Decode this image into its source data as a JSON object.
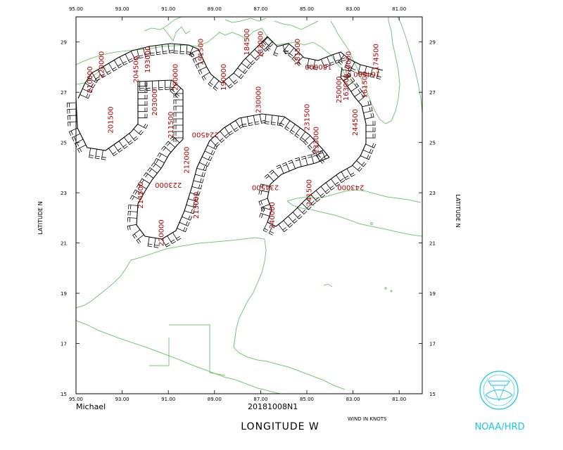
{
  "map": {
    "lon_range": [
      -95.0,
      -80.0
    ],
    "lat_range": [
      15.0,
      30.0
    ],
    "lon_ticks": [
      "95.00",
      "93.00",
      "91.00",
      "89.00",
      "87.00",
      "85.00",
      "83.00",
      "81.00"
    ],
    "lat_ticks": [
      "15",
      "17",
      "19",
      "21",
      "23",
      "25",
      "27",
      "29"
    ],
    "x_axis_label": "LONGITUDE   W",
    "y_axis_label_left": "LATITUDE   N",
    "y_axis_label_right": "LATITUDE   N",
    "storm_name": "Michael",
    "flight_id": "20181008N1",
    "units_note": "WIND IN KNOTS",
    "agency": "NOAA/HRD",
    "colors": {
      "coast": "#79c679",
      "track": "#000000",
      "labels": "#b00000",
      "logo": "#19c8e6"
    }
  },
  "track_labels": [
    {
      "text": "193000",
      "lon": -91.8,
      "lat": 28.3,
      "rot": -90
    },
    {
      "text": "191500",
      "lon": -89.5,
      "lat": 28.6,
      "rot": -90
    },
    {
      "text": "184500",
      "lon": -87.5,
      "lat": 29.0,
      "rot": -90
    },
    {
      "text": "183000",
      "lon": -86.9,
      "lat": 28.9,
      "rot": -90
    },
    {
      "text": "181500",
      "lon": -85.3,
      "lat": 28.6,
      "rot": -90
    },
    {
      "text": "174500",
      "lon": -81.9,
      "lat": 28.4,
      "rot": -90
    },
    {
      "text": "204500",
      "lon": -92.3,
      "lat": 27.9,
      "rot": -90
    },
    {
      "text": "200000",
      "lon": -90.6,
      "lat": 27.6,
      "rot": -90
    },
    {
      "text": "190000",
      "lon": -88.5,
      "lat": 27.6,
      "rot": -90
    },
    {
      "text": "180000",
      "lon": -84.5,
      "lat": 28.1,
      "rot": 180
    },
    {
      "text": "170000",
      "lon": -83.1,
      "lat": 28.1,
      "rot": -90
    },
    {
      "text": "164500",
      "lon": -82.4,
      "lat": 27.8,
      "rot": 180
    },
    {
      "text": "161500",
      "lon": -82.4,
      "lat": 27.3,
      "rot": -90
    },
    {
      "text": "163000",
      "lon": -83.2,
      "lat": 27.2,
      "rot": -90
    },
    {
      "text": "210000",
      "lon": -94.3,
      "lat": 27.5,
      "rot": -90
    },
    {
      "text": "220000",
      "lon": -93.8,
      "lat": 28.1,
      "rot": -90
    },
    {
      "text": "203000",
      "lon": -91.5,
      "lat": 26.6,
      "rot": -90
    },
    {
      "text": "211500",
      "lon": -90.8,
      "lat": 25.7,
      "rot": -90
    },
    {
      "text": "230000",
      "lon": -87.0,
      "lat": 26.7,
      "rot": -90
    },
    {
      "text": "231500",
      "lon": -84.9,
      "lat": 26.0,
      "rot": -90
    },
    {
      "text": "201500",
      "lon": -93.4,
      "lat": 25.9,
      "rot": -90
    },
    {
      "text": "224500",
      "lon": -89.4,
      "lat": 25.4,
      "rot": 180
    },
    {
      "text": "233000",
      "lon": -84.5,
      "lat": 25.1,
      "rot": -90
    },
    {
      "text": "244500",
      "lon": -82.8,
      "lat": 25.8,
      "rot": -90
    },
    {
      "text": "250000",
      "lon": -83.5,
      "lat": 27.1,
      "rot": -90
    },
    {
      "text": "212000",
      "lon": -90.1,
      "lat": 24.3,
      "rot": -90
    },
    {
      "text": "234500",
      "lon": -86.8,
      "lat": 23.3,
      "rot": 180
    },
    {
      "text": "243000",
      "lon": -83.1,
      "lat": 23.3,
      "rot": 180
    },
    {
      "text": "223000",
      "lon": -91.0,
      "lat": 23.4,
      "rot": 180
    },
    {
      "text": "214500",
      "lon": -92.1,
      "lat": 22.9,
      "rot": -90
    },
    {
      "text": "213000",
      "lon": -89.7,
      "lat": 22.5,
      "rot": -90
    },
    {
      "text": "241500",
      "lon": -84.8,
      "lat": 23.0,
      "rot": -90
    },
    {
      "text": "240000",
      "lon": -86.4,
      "lat": 22.1,
      "rot": -90
    },
    {
      "text": "220000",
      "lon": -91.2,
      "lat": 21.4,
      "rot": -90
    }
  ]
}
